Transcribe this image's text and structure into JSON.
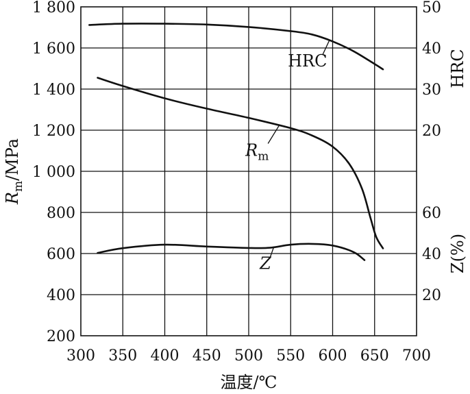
{
  "chart_data": {
    "type": "line",
    "xlabel": "温度/℃",
    "x_ticks": [
      300,
      350,
      400,
      450,
      500,
      550,
      600,
      650,
      700
    ],
    "xlim": [
      300,
      700
    ],
    "left_axis": {
      "label_main": "R",
      "label_sub": "m",
      "label_unit": "/MPa",
      "ticks": [
        200,
        400,
        600,
        800,
        1000,
        1200,
        1400,
        1600,
        1800
      ],
      "tick_labels": [
        "200",
        "400",
        "600",
        "800",
        "1 000",
        "1 200",
        "1 400",
        "1 600",
        "1 800"
      ],
      "ylim": [
        200,
        1800
      ]
    },
    "right_axis_hrc": {
      "label": "HRC",
      "ticks": [
        20,
        30,
        40,
        50
      ],
      "ylim": [
        20,
        50
      ]
    },
    "right_axis_z": {
      "label": "Z(%)",
      "ticks": [
        20,
        40,
        60
      ],
      "ylim": [
        20,
        60
      ]
    },
    "series": [
      {
        "name": "HRC",
        "axis": "hrc",
        "x": [
          310,
          350,
          400,
          450,
          500,
          550,
          575,
          600,
          625,
          650,
          660
        ],
        "y": [
          45.6,
          45.9,
          45.9,
          45.7,
          45.1,
          44.1,
          43.3,
          41.6,
          39.2,
          36.1,
          34.8
        ]
      },
      {
        "name_main": "R",
        "name_sub": "m",
        "axis": "rm",
        "x": [
          320,
          350,
          400,
          450,
          500,
          550,
          575,
          600,
          620,
          635,
          645,
          652,
          660
        ],
        "y": [
          1455,
          1415,
          1355,
          1305,
          1260,
          1210,
          1175,
          1120,
          1035,
          915,
          775,
          680,
          625
        ]
      },
      {
        "name": "Z",
        "axis": "z",
        "x": [
          320,
          350,
          400,
          450,
          500,
          525,
          550,
          575,
          600,
          625,
          638
        ],
        "y": [
          40.3,
          42.6,
          44.3,
          43.4,
          42.7,
          42.8,
          44.3,
          44.7,
          43.9,
          40.7,
          36.8
        ]
      }
    ]
  }
}
